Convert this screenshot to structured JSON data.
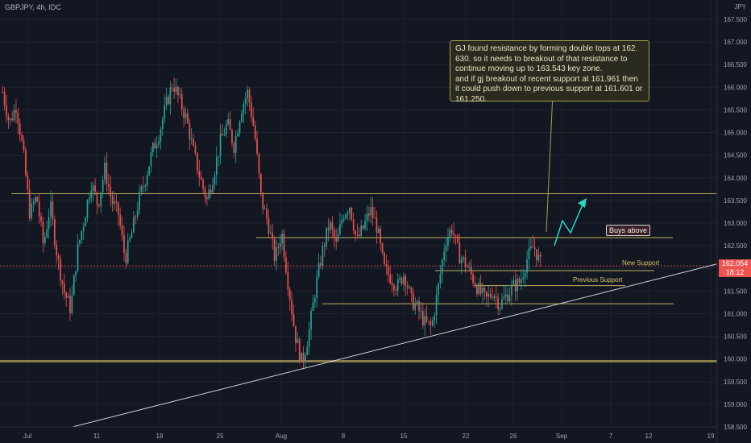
{
  "symbol_header": "GBPJPY, 4h, IDC",
  "currency": "JPY",
  "current_price": "162.054",
  "countdown": "18:12",
  "colors": {
    "background": "#131722",
    "up": "#26a69a",
    "down": "#ef5350",
    "level": "#d4c266",
    "trendline": "#d1d4dc",
    "axis_text": "#9ea3ae",
    "arrow": "#2bd6c8"
  },
  "callout": {
    "lines": [
      "GJ found resistance by forming double tops at 162.",
      "630. so it needs to breakout of that resistance to",
      "continue moving up to 163.543 key zone.",
      "and if gj breakout of recent support at 161.961 then",
      "it could push down to previous support at 161.601 or",
      "161.250."
    ]
  },
  "annotations": {
    "buys_above": "Buys above",
    "new_support": "New Support",
    "previous_support": "Previous Support"
  },
  "chart_data": {
    "type": "candlestick",
    "y_axis_ticks": [
      "167.500",
      "167.000",
      "166.500",
      "166.000",
      "165.500",
      "165.000",
      "164.500",
      "164.000",
      "163.500",
      "163.000",
      "162.500",
      "162.000",
      "161.500",
      "161.000",
      "160.500",
      "160.000",
      "159.500",
      "159.000",
      "158.500"
    ],
    "ylim": [
      158.5,
      167.8
    ],
    "x_axis_ticks": [
      "Jul",
      "11",
      "18",
      "25",
      "Aug",
      "8",
      "15",
      "22",
      "26",
      "Sep",
      "7",
      "12",
      "19"
    ],
    "levels": [
      {
        "value": 163.65,
        "label": ""
      },
      {
        "value": 162.68,
        "label": ""
      },
      {
        "value": 161.95,
        "label": "New Support"
      },
      {
        "value": 161.62,
        "label": "Previous Support"
      },
      {
        "value": 161.22,
        "label": ""
      },
      {
        "value": 159.95,
        "label": ""
      }
    ],
    "trendline": {
      "from": [
        "Jul",
        158.5
      ],
      "to": [
        "19",
        162.1
      ]
    },
    "candle_path": [
      165.9,
      165.2,
      165.6,
      164.6,
      163.2,
      163.6,
      162.5,
      163.4,
      162.3,
      161.5,
      161.1,
      162.4,
      163.1,
      163.9,
      163.4,
      164.2,
      163.5,
      163.2,
      162.2,
      162.8,
      163.5,
      164.0,
      164.6,
      165.0,
      165.6,
      166.1,
      165.7,
      165.3,
      164.6,
      164.0,
      163.5,
      164.1,
      164.8,
      165.2,
      164.7,
      165.5,
      165.9,
      165.0,
      163.5,
      163.0,
      162.2,
      162.8,
      161.6,
      160.5,
      159.9,
      160.6,
      161.6,
      162.4,
      163.0,
      162.5,
      163.2,
      163.4,
      162.6,
      162.9,
      163.3,
      162.9,
      162.0,
      161.8,
      161.6,
      161.9,
      161.3,
      161.1,
      160.8,
      160.7,
      161.6,
      162.6,
      162.9,
      162.3,
      162.1,
      161.8,
      161.5,
      161.3,
      161.5,
      161.2,
      161.4,
      161.6,
      161.7,
      162.2,
      162.5,
      162.1
    ]
  }
}
